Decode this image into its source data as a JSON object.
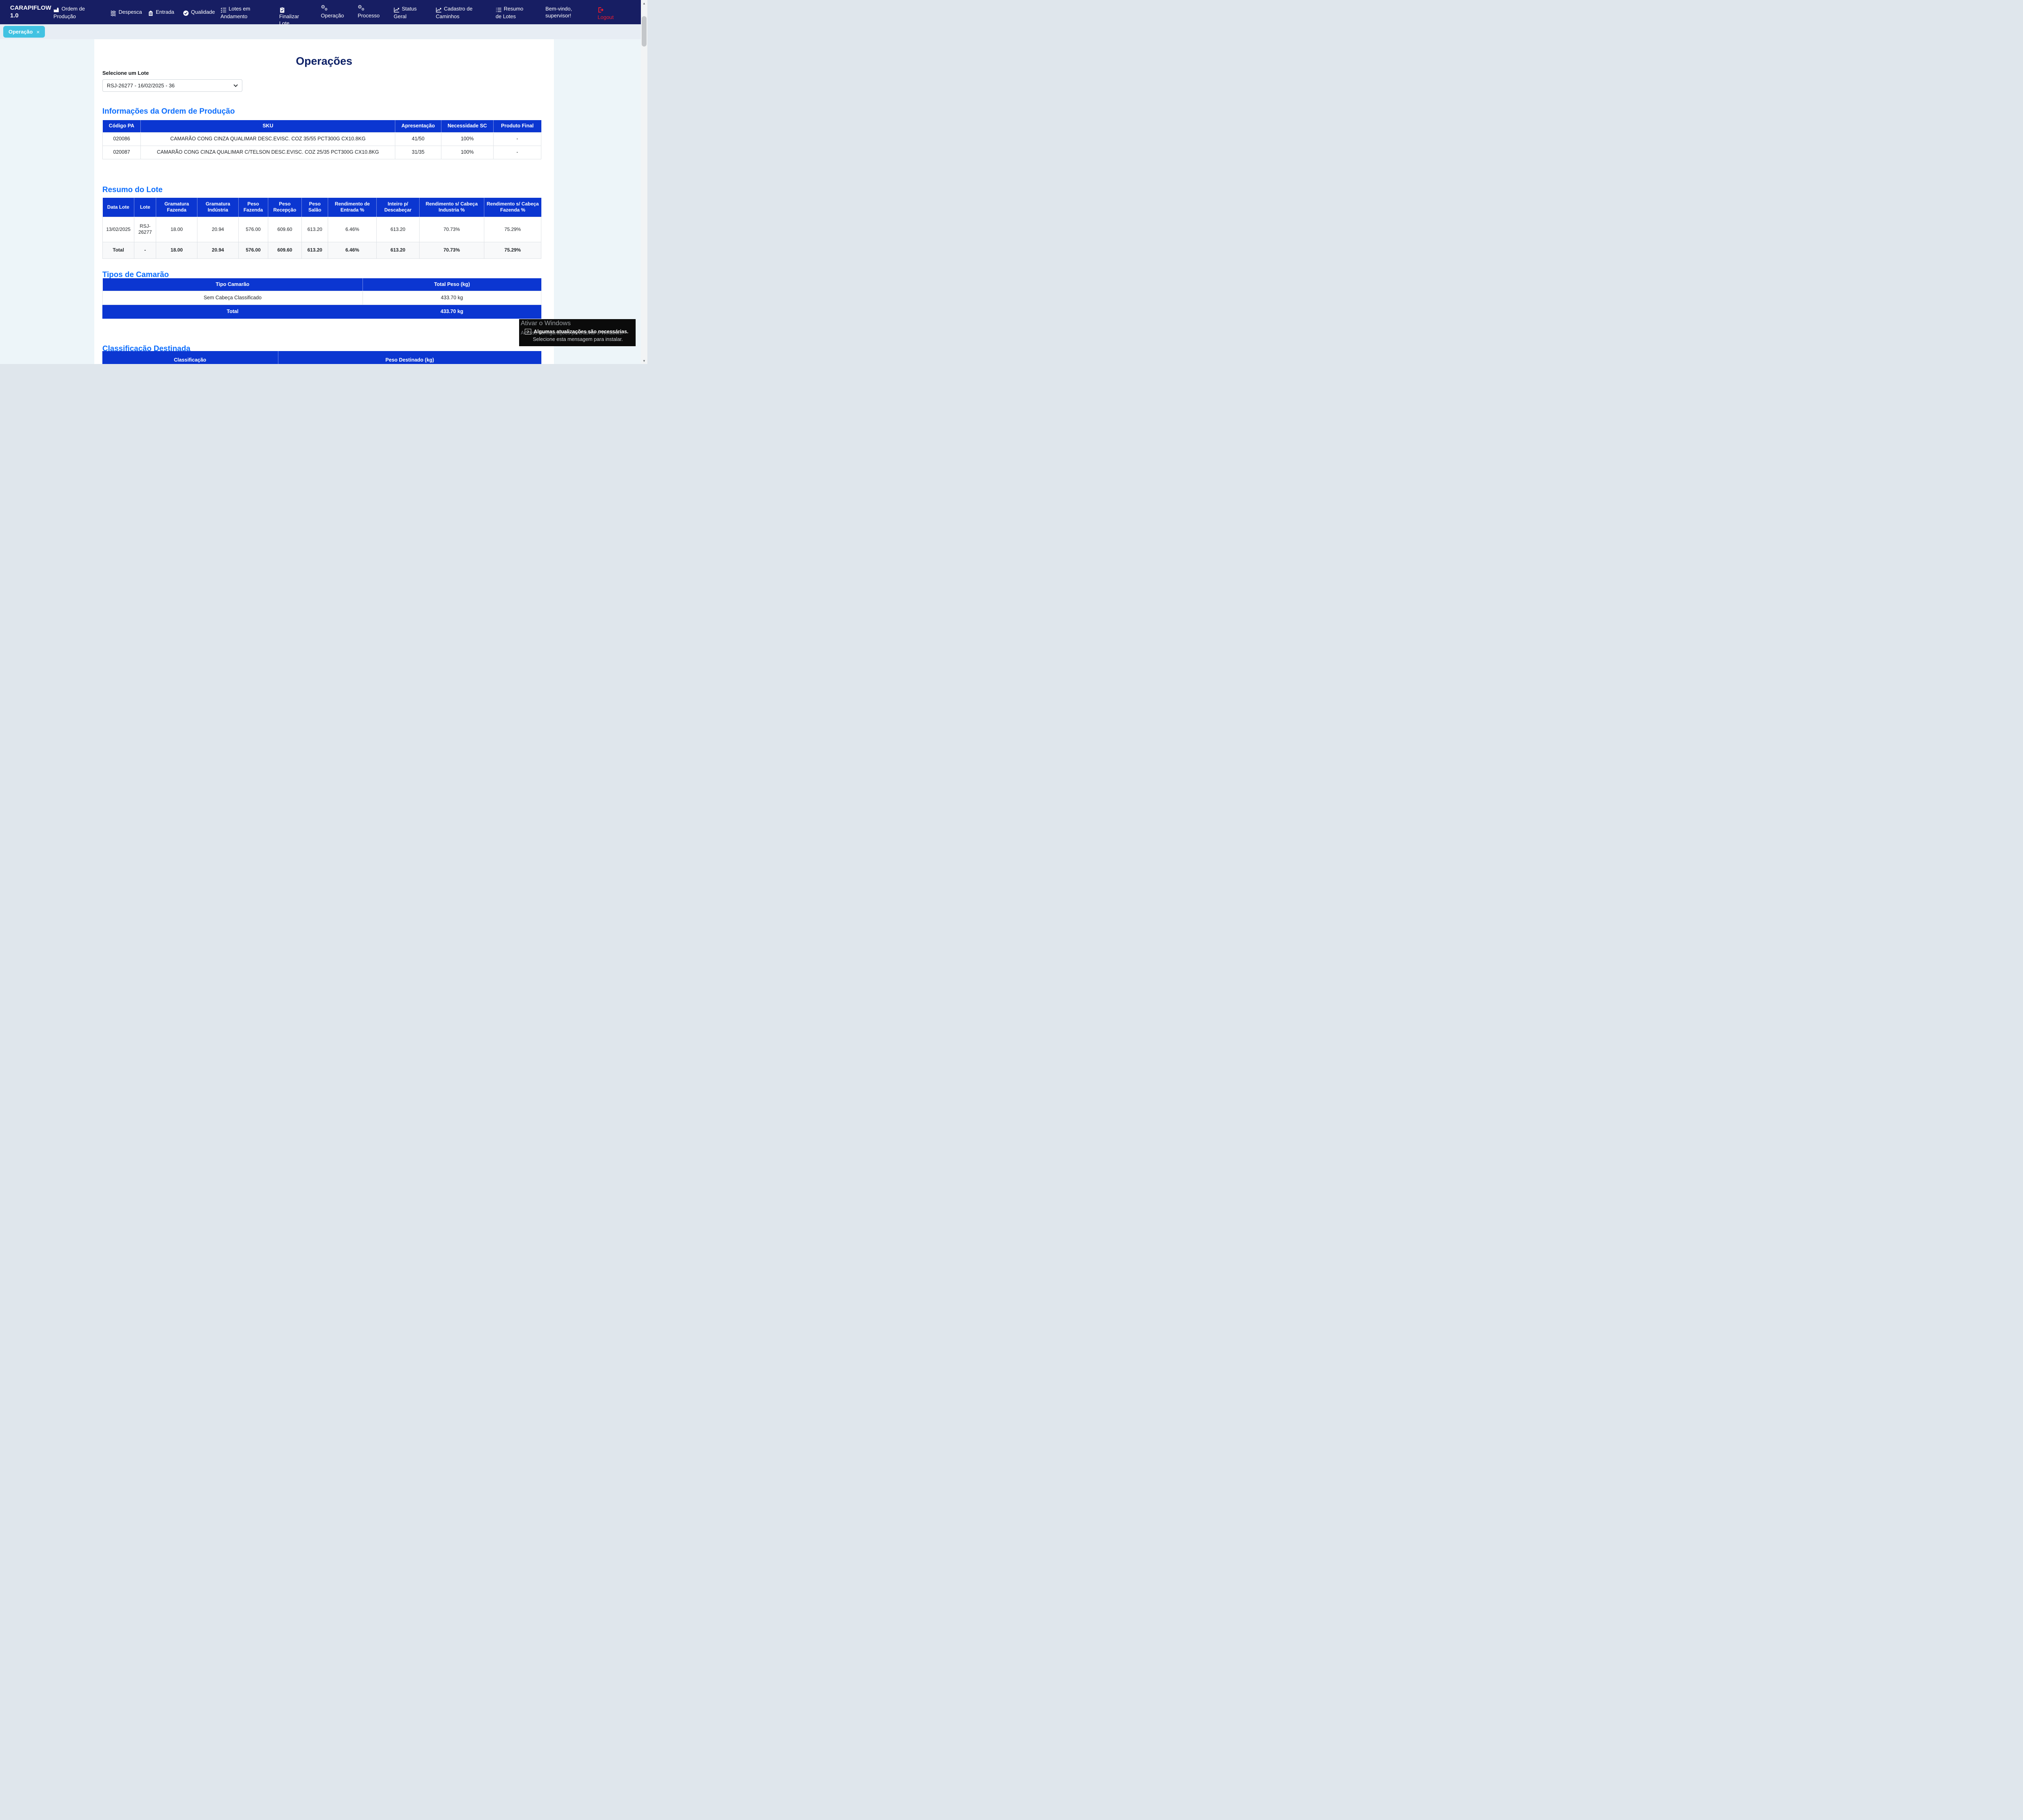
{
  "colors": {
    "navbar_bg": "#171e63",
    "accent_blue": "#0d6efd",
    "table_header_blue": "#0b36d1",
    "active_tab_cyan": "#41c2e2",
    "logout_red": "#ec1c2d",
    "title_navy": "#0d2066"
  },
  "navbar": {
    "brand": "CARAPIFLOW 1.0",
    "items": [
      {
        "label": "Ordem de Produção",
        "icon": "factory-icon"
      },
      {
        "label": "Despesca",
        "icon": "waves-icon"
      },
      {
        "label": "Entrada",
        "icon": "box-icon"
      },
      {
        "label": "Qualidade",
        "icon": "check-circle-icon"
      },
      {
        "label": "Lotes em Andamento",
        "icon": "list-check-icon"
      },
      {
        "label": "Finalizar Lote",
        "icon": "clipboard-check-icon"
      },
      {
        "label": "Operação",
        "icon": "gears-icon"
      },
      {
        "label": "Processo",
        "icon": "gears-icon"
      },
      {
        "label": "Status Geral",
        "icon": "chart-line-icon"
      },
      {
        "label": "Cadastro de Caminhos",
        "icon": "chart-line-icon"
      },
      {
        "label": "Resumo de Lotes",
        "icon": "list-icon"
      }
    ],
    "welcome": "Bem-vindo, supervisor!",
    "logout_label": "Logout"
  },
  "tab": {
    "label": "Operação",
    "close": "×"
  },
  "page": {
    "title": "Operações",
    "select_label": "Selecione um Lote",
    "select_value": "RSJ-26277 - 16/02/2025 - 36"
  },
  "ordem": {
    "heading": "Informações da Ordem de Produção",
    "headers": [
      "Código PA",
      "SKU",
      "Apresentação",
      "Necessidade SC",
      "Produto Final"
    ],
    "rows": [
      [
        "020086",
        "CAMARÃO CONG CINZA QUALIMAR DESC.EVISC. COZ 35/55 PCT300G CX10.8KG",
        "41/50",
        "100%",
        "-"
      ],
      [
        "020087",
        "CAMARÃO CONG CINZA QUALIMAR C/TELSON DESC.EVISC. COZ 25/35 PCT300G CX10.8KG",
        "31/35",
        "100%",
        "-"
      ]
    ]
  },
  "resumo": {
    "heading": "Resumo do Lote",
    "headers": [
      "Data Lote",
      "Lote",
      "Gramatura Fazenda",
      "Gramatura Indústria",
      "Peso Fazenda",
      "Peso Recepção",
      "Peso Salão",
      "Rendimento de Entrada %",
      "Inteiro p/ Descabeçar",
      "Rendimento s/ Cabeça Industria %",
      "Rendimento s/ Cabeça Fazenda %"
    ],
    "rows": [
      [
        "13/02/2025",
        "RSJ-26277",
        "18.00",
        "20.94",
        "576.00",
        "609.60",
        "613.20",
        "6.46%",
        "613.20",
        "70.73%",
        "75.29%"
      ]
    ],
    "total_row": [
      "Total",
      "-",
      "18.00",
      "20.94",
      "576.00",
      "609.60",
      "613.20",
      "6.46%",
      "613.20",
      "70.73%",
      "75.29%"
    ]
  },
  "tipos": {
    "heading": "Tipos de Camarão",
    "headers": [
      "Tipo Camarão",
      "Total Peso (kg)"
    ],
    "rows": [
      [
        "Sem Cabeça Classificado",
        "433.70 kg"
      ]
    ],
    "total_row": [
      "Total",
      "433.70 kg"
    ]
  },
  "classificacao": {
    "heading": "Classificação Destinada",
    "headers": [
      "Classificação",
      "Peso Destinado (kg)"
    ]
  },
  "windows_overlay": {
    "watermark_line1": "Ativar o Windows",
    "watermark_line2": "Acesse configurações para ativar o Windows.",
    "toast_title": "Algumas atualizações são necessárias.",
    "toast_subtitle": "Selecione esta mensagem para instalar."
  }
}
